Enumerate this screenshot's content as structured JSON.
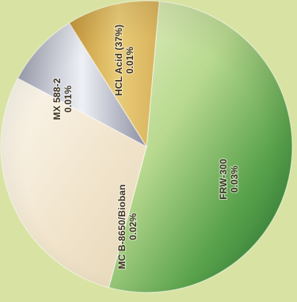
{
  "chart_data": {
    "type": "pie",
    "title": "",
    "slices": [
      {
        "label": "FRW-300",
        "value_label": "0.03%",
        "value": 0.03,
        "color": "#4f9f49"
      },
      {
        "label": "MC B-8650/Bioban",
        "value_label": "0.02%",
        "value": 0.02,
        "color": "#f2e6cf"
      },
      {
        "label": "MX 588-2",
        "value_label": "0.01%",
        "value": 0.01,
        "color": "#a8a8b5"
      },
      {
        "label": "HCL Acid (37%)",
        "value_label": "0.01%",
        "value": 0.01,
        "color": "#d8b25f"
      }
    ],
    "legend": "none"
  }
}
